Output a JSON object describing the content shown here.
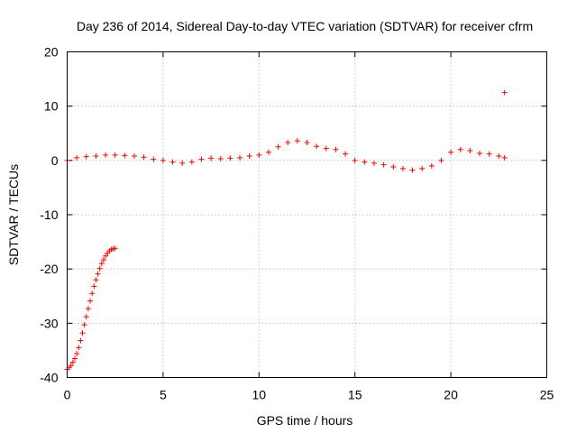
{
  "chart_data": {
    "type": "scatter",
    "title": "Day 236 of 2014, Sidereal Day-to-day VTEC variation (SDTVAR) for receiver cfrm",
    "xlabel": "GPS time / hours",
    "ylabel": "SDTVAR / TECUs",
    "xlim": [
      0,
      25
    ],
    "ylim": [
      -40,
      20
    ],
    "x_ticks": [
      0,
      5,
      10,
      15,
      20,
      25
    ],
    "y_ticks": [
      -40,
      -30,
      -20,
      -10,
      0,
      10,
      20
    ],
    "x_tick_labels": [
      "0",
      "5",
      "10",
      "15",
      "20",
      "25"
    ],
    "y_tick_labels": [
      "-40",
      "-30",
      "-20",
      "-10",
      "0",
      "10",
      "20"
    ],
    "grid": true,
    "marker": "+",
    "color": "#ff0000",
    "series": [
      {
        "name": "SDTVAR",
        "x": [
          0.0,
          0.1,
          0.2,
          0.3,
          0.4,
          0.5,
          0.6,
          0.7,
          0.8,
          0.9,
          1.0,
          1.1,
          1.2,
          1.3,
          1.4,
          1.5,
          1.6,
          1.7,
          1.8,
          1.9,
          2.0,
          2.1,
          2.2,
          2.3,
          2.4,
          2.5,
          0.0,
          0.5,
          1.0,
          1.5,
          2.0,
          2.5,
          3.0,
          3.5,
          4.0,
          4.5,
          5.0,
          5.5,
          6.0,
          6.5,
          7.0,
          7.5,
          8.0,
          8.5,
          9.0,
          9.5,
          10.0,
          10.5,
          11.0,
          11.5,
          12.0,
          12.5,
          13.0,
          13.5,
          14.0,
          14.5,
          15.0,
          15.5,
          16.0,
          16.5,
          17.0,
          17.5,
          18.0,
          18.5,
          19.0,
          19.5,
          20.0,
          20.5,
          21.0,
          21.5,
          22.0,
          22.5,
          22.8,
          22.8
        ],
        "y": [
          -38.5,
          -38.2,
          -37.8,
          -37.2,
          -36.5,
          -35.6,
          -34.5,
          -33.2,
          -31.8,
          -30.3,
          -28.8,
          -27.3,
          -25.9,
          -24.5,
          -23.2,
          -22.0,
          -20.9,
          -19.9,
          -19.0,
          -18.3,
          -17.6,
          -17.1,
          -16.7,
          -16.4,
          -16.3,
          -16.2,
          0.0,
          0.5,
          0.7,
          0.8,
          1.0,
          1.0,
          0.9,
          0.8,
          0.6,
          0.2,
          0.0,
          -0.3,
          -0.5,
          -0.3,
          0.2,
          0.4,
          0.3,
          0.4,
          0.5,
          0.8,
          1.0,
          1.5,
          2.5,
          3.3,
          3.6,
          3.3,
          2.6,
          2.2,
          2.0,
          1.2,
          0.0,
          -0.3,
          -0.5,
          -0.8,
          -1.2,
          -1.5,
          -1.8,
          -1.5,
          -1.0,
          0.0,
          1.5,
          2.0,
          1.8,
          1.3,
          1.2,
          0.8,
          0.5,
          12.5
        ]
      }
    ]
  }
}
